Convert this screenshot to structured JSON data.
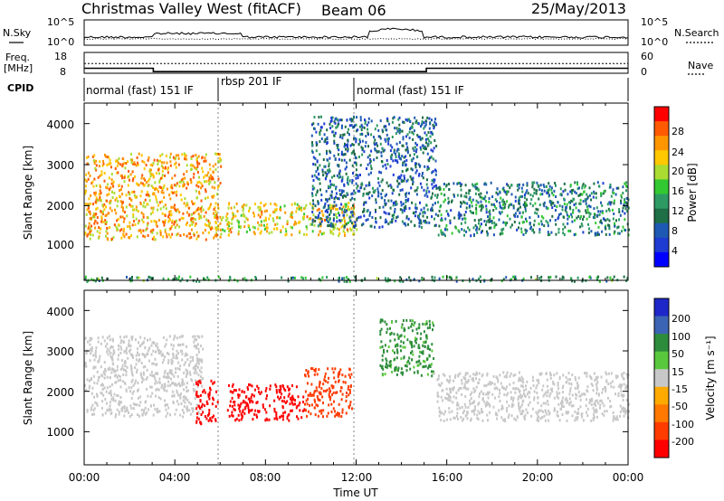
{
  "header": {
    "station": "Christmas Valley West (fitACF)",
    "beam": "Beam 06",
    "date": "25/May/2013"
  },
  "nsky_panel": {
    "left_label": "N.Sky",
    "right_label": "N.Search",
    "left_ticks": [
      "10^5",
      "10^0"
    ],
    "right_ticks": [
      "10^5",
      "10^0"
    ]
  },
  "freq_panel": {
    "left_label_1": "Freq.",
    "left_label_2": "[MHz]",
    "left_ticks": [
      "18",
      "8"
    ],
    "right_ticks": [
      "60",
      "0"
    ],
    "right_label": "Nave",
    "freq_mhz_steps": [
      {
        "start_hr": 0,
        "end_hr": 3.05,
        "value": 10.4
      },
      {
        "start_hr": 3.05,
        "end_hr": 15.1,
        "value": 8.8
      },
      {
        "start_hr": 15.1,
        "end_hr": 24,
        "value": 10.4
      }
    ],
    "nave_level": 28
  },
  "cpid_bar": {
    "label": "CPID",
    "segments": [
      {
        "start_hr": 0,
        "end_hr": 6,
        "text": "normal (fast) 151 IF"
      },
      {
        "start_hr": 6,
        "end_hr": 12,
        "text": "rbsp 201 IF"
      },
      {
        "start_hr": 12,
        "end_hr": 24,
        "text": "normal (fast) 151 IF"
      }
    ]
  },
  "power_panel": {
    "ylabel": "Slant Range [km]",
    "yticks": [
      "1000",
      "2000",
      "3000",
      "4000"
    ],
    "colorbar_label": "Power [dB]",
    "colorbar_ticks": [
      "28",
      "24",
      "20",
      "16",
      "12",
      "8",
      "4"
    ],
    "colorbar_colors": [
      "#ff0000",
      "#ff5a00",
      "#ff9600",
      "#ffc800",
      "#aadc32",
      "#32c832",
      "#2d9a64",
      "#1e6e46",
      "#1e5ab4",
      "#1e3cd2",
      "#0000ff"
    ]
  },
  "velocity_panel": {
    "ylabel": "Slant Range [km]",
    "yticks": [
      "1000",
      "2000",
      "3000",
      "4000"
    ],
    "colorbar_label": "Velocity [m s⁻¹]",
    "colorbar_ticks": [
      "200",
      "100",
      "50",
      "15",
      "-15",
      "-50",
      "-100",
      "-200"
    ],
    "colorbar_colors": [
      "#1e28c8",
      "#3c64b4",
      "#2d8c3c",
      "#5ac83c",
      "#c8c8c8",
      "#ffaa00",
      "#ff7800",
      "#ff3c00",
      "#ff0000"
    ]
  },
  "time_axis": {
    "label": "Time UT",
    "ticks": [
      "00:00",
      "04:00",
      "08:00",
      "12:00",
      "16:00",
      "20:00",
      "00:00"
    ]
  },
  "chart_data": [
    {
      "type": "heatmap",
      "title": "",
      "xlabel": "Time UT",
      "ylabel": "Slant Range [km]",
      "xlim_hours": [
        0,
        24
      ],
      "ylim_km": [
        180,
        4500
      ],
      "colorbar": {
        "label": "Power [dB]",
        "range": [
          0,
          30
        ]
      },
      "scatter_regions": [
        {
          "t0": 0.0,
          "t1": 6.0,
          "r0": 1200,
          "r1": 3300,
          "value": 22
        },
        {
          "t0": 6.0,
          "t1": 12.0,
          "r0": 1300,
          "r1": 2100,
          "value": 20
        },
        {
          "t0": 10.0,
          "t1": 15.5,
          "r0": 1500,
          "r1": 4200,
          "value": 8
        },
        {
          "t0": 15.5,
          "t1": 24.0,
          "r0": 1300,
          "r1": 2600,
          "value": 10
        },
        {
          "t0": 0.0,
          "t1": 24.0,
          "r0": 180,
          "r1": 300,
          "value": 12
        }
      ]
    },
    {
      "type": "heatmap",
      "title": "",
      "xlabel": "Time UT",
      "ylabel": "Slant Range [km]",
      "xlim_hours": [
        0,
        24
      ],
      "ylim_km": [
        180,
        4500
      ],
      "colorbar": {
        "label": "Velocity [m s⁻¹]",
        "range": [
          -200,
          200
        ]
      },
      "scatter_regions": [
        {
          "t0": 0.0,
          "t1": 5.2,
          "r0": 1400,
          "r1": 3400,
          "value": 0
        },
        {
          "t0": 4.9,
          "t1": 5.9,
          "r0": 1200,
          "r1": 2300,
          "value": -200
        },
        {
          "t0": 6.3,
          "t1": 9.7,
          "r0": 1300,
          "r1": 2200,
          "value": -200
        },
        {
          "t0": 9.7,
          "t1": 11.8,
          "r0": 1400,
          "r1": 2600,
          "value": -130
        },
        {
          "t0": 13.0,
          "t1": 15.4,
          "r0": 2400,
          "r1": 3800,
          "value": 40
        },
        {
          "t0": 15.4,
          "t1": 24.0,
          "r0": 1300,
          "r1": 2500,
          "value": 0
        }
      ]
    }
  ]
}
